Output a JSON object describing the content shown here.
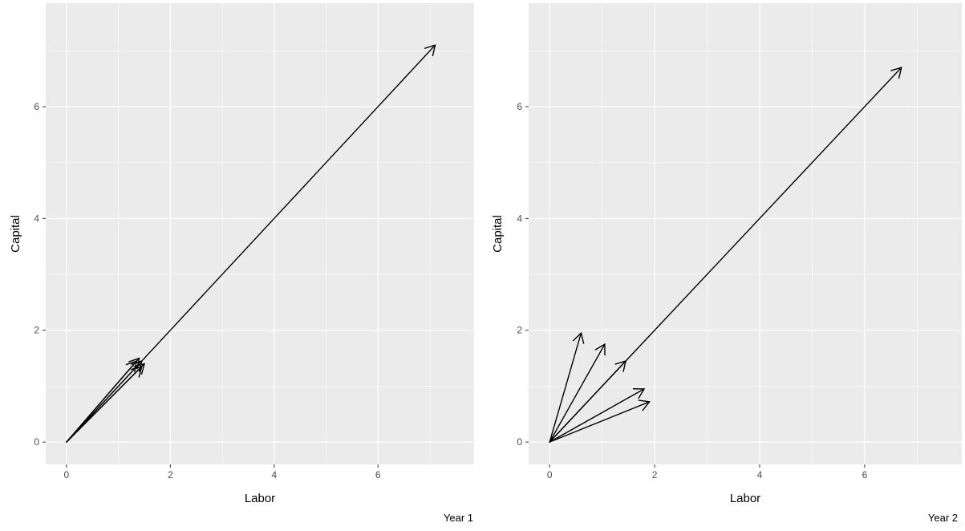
{
  "chart_data": [
    {
      "type": "vector",
      "xlabel": "Labor",
      "ylabel": "Capital",
      "caption": "Year 1",
      "xlim": [
        -0.4,
        7.85
      ],
      "ylim": [
        -0.4,
        7.85
      ],
      "x_ticks": [
        0,
        2,
        4,
        6
      ],
      "y_ticks": [
        0,
        2,
        4,
        6
      ],
      "x_tick_labels": [
        "0",
        "2",
        "4",
        "6"
      ],
      "y_tick_labels": [
        "0",
        "2",
        "4",
        "6"
      ],
      "grid": true,
      "background_color": "#ebebeb",
      "grid_color": "#ffffff",
      "arrow_color": "#000000",
      "arrows": [
        {
          "x0": 0,
          "y0": 0,
          "x1": 7.1,
          "y1": 7.1
        },
        {
          "x0": 0,
          "y0": 0,
          "x1": 1.45,
          "y1": 1.35
        },
        {
          "x0": 0,
          "y0": 0,
          "x1": 1.45,
          "y1": 1.45
        },
        {
          "x0": 0,
          "y0": 0,
          "x1": 1.4,
          "y1": 1.5
        },
        {
          "x0": 0,
          "y0": 0,
          "x1": 1.35,
          "y1": 1.45
        },
        {
          "x0": 0,
          "y0": 0,
          "x1": 1.5,
          "y1": 1.4
        }
      ]
    },
    {
      "type": "vector",
      "xlabel": "Labor",
      "ylabel": "Capital",
      "caption": "Year 2",
      "xlim": [
        -0.4,
        7.85
      ],
      "ylim": [
        -0.4,
        7.85
      ],
      "x_ticks": [
        0,
        2,
        4,
        6
      ],
      "y_ticks": [
        0,
        2,
        4,
        6
      ],
      "x_tick_labels": [
        "0",
        "2",
        "4",
        "6"
      ],
      "y_tick_labels": [
        "0",
        "2",
        "4",
        "6"
      ],
      "grid": true,
      "background_color": "#ebebeb",
      "grid_color": "#ffffff",
      "arrow_color": "#000000",
      "arrows": [
        {
          "x0": 0,
          "y0": 0,
          "x1": 6.7,
          "y1": 6.7
        },
        {
          "x0": 0,
          "y0": 0,
          "x1": 0.6,
          "y1": 1.95
        },
        {
          "x0": 0,
          "y0": 0,
          "x1": 1.05,
          "y1": 1.75
        },
        {
          "x0": 0,
          "y0": 0,
          "x1": 1.45,
          "y1": 1.45
        },
        {
          "x0": 0,
          "y0": 0,
          "x1": 1.8,
          "y1": 0.95
        },
        {
          "x0": 0,
          "y0": 0,
          "x1": 1.9,
          "y1": 0.72
        }
      ]
    }
  ]
}
